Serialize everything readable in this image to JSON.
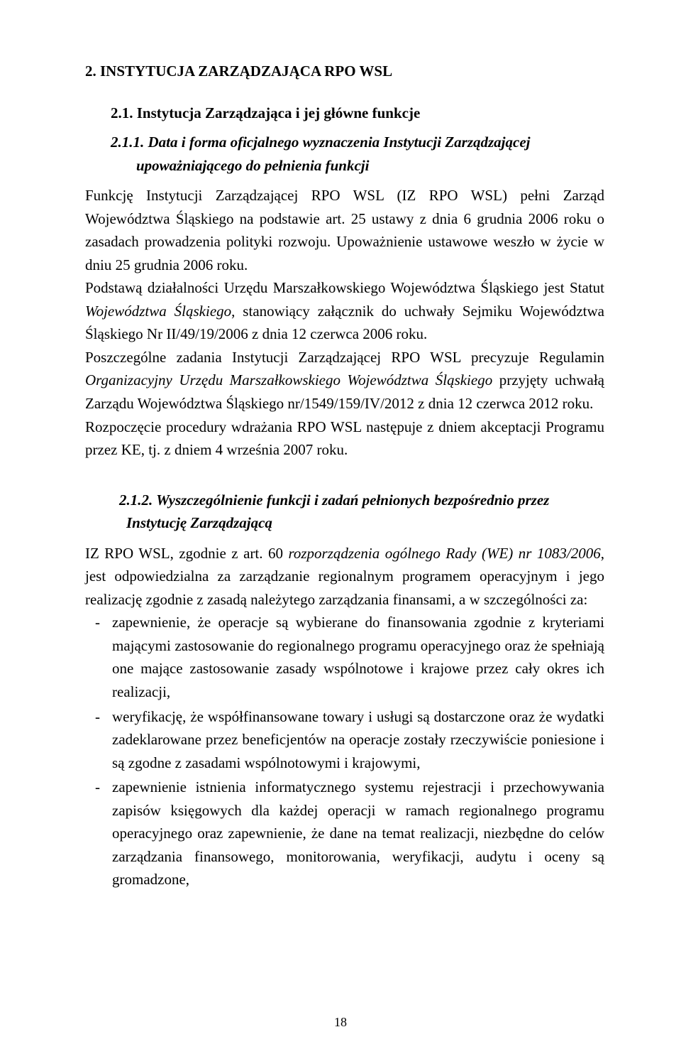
{
  "h1": "2. INSTYTUCJA ZARZĄDZAJĄCA RPO WSL",
  "h2": "2.1. Instytucja Zarządzająca i jej główne funkcje",
  "h3_1_num": "2.1.1.",
  "h3_1_text": "Data i forma oficjalnego wyznaczenia Instytucji Zarządzającej upoważniającego do pełnienia funkcji",
  "p1": "Funkcję Instytucji Zarządzającej RPO WSL (IZ RPO WSL) pełni Zarząd Województwa Śląskiego na podstawie art. 25 ustawy z dnia 6 grudnia 2006 roku o zasadach prowadzenia polityki rozwoju. Upoważnienie ustawowe weszło w życie w dniu 25 grudnia 2006 roku.",
  "p2_a": "Podstawą działalności Urzędu Marszałkowskiego Województwa Śląskiego jest Statut ",
  "p2_i": "Województwa Śląskiego",
  "p2_b": ", stanowiący załącznik do uchwały Sejmiku Województwa Śląskiego Nr II/49/19/2006 z dnia 12 czerwca 2006 roku.",
  "p3_a": "Poszczególne zadania Instytucji Zarządzającej RPO WSL precyzuje Regulamin ",
  "p3_i": "Organizacyjny Urzędu Marszałkowskiego Województwa Śląskiego",
  "p3_b": " przyjęty uchwałą Zarządu Województwa Śląskiego nr/1549/159/IV/2012 z dnia 12 czerwca 2012 roku.",
  "p4": "Rozpoczęcie procedury wdrażania RPO WSL następuje z dniem akceptacji Programu przez KE, tj. z dniem 4 września 2007 roku.",
  "h3_2_num": "2.1.2.",
  "h3_2_text": "Wyszczególnienie funkcji i zadań pełnionych bezpośrednio przez Instytucję Zarządzającą",
  "p5_a": "IZ RPO WSL, zgodnie z art. 60 ",
  "p5_i": "rozporządzenia ogólnego Rady (WE) nr 1083/2006",
  "p5_b": ", jest odpowiedzialna za zarządzanie regionalnym programem operacyjnym i jego realizację zgodnie z zasadą należytego zarządzania finansami, a w szczególności za:",
  "li1": "zapewnienie, że operacje są wybierane do finansowania zgodnie z kryteriami mającymi zastosowanie do regionalnego programu operacyjnego oraz że spełniają one mające zastosowanie zasady wspólnotowe i krajowe przez cały okres ich realizacji,",
  "li2": "weryfikację, że współfinansowane towary i usługi są dostarczone oraz że wydatki zadeklarowane przez beneficjentów na operacje zostały rzeczywiście poniesione i są zgodne z zasadami wspólnotowymi i krajowymi,",
  "li3": "zapewnienie istnienia informatycznego systemu rejestracji i przechowywania zapisów księgowych dla każdej operacji w ramach regionalnego programu operacyjnego oraz zapewnienie, że dane na temat realizacji, niezbędne do celów zarządzania finansowego, monitorowania, weryfikacji, audytu i oceny są gromadzone,",
  "pageNumber": "18",
  "colors": {
    "text": "#000000",
    "background": "#ffffff"
  },
  "typography": {
    "font_family": "Times New Roman",
    "body_pt": 21,
    "line_height": 1.55,
    "heading_weight": "bold",
    "heading_style_h3": "italic"
  }
}
